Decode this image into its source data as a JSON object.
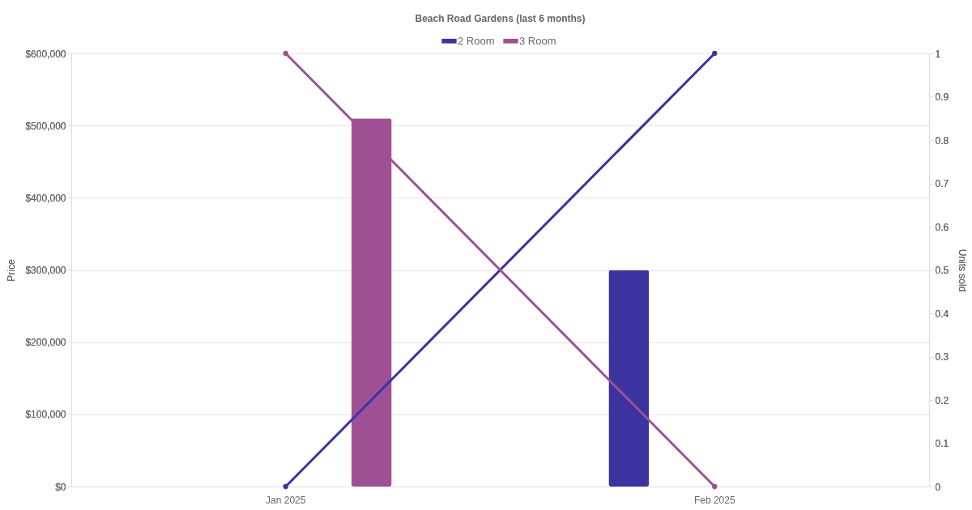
{
  "chart_data": {
    "type": "bar",
    "title": "Beach Road Gardens (last 6 months)",
    "ylabel": "Price",
    "y2label": "Units sold",
    "categories": [
      "Jan 2025",
      "Feb 2025"
    ],
    "series": [
      {
        "name": "2 Room",
        "color": "#3a33a0",
        "values": [
          null,
          300000
        ]
      },
      {
        "name": "3 Room",
        "color": "#9f5094",
        "values": [
          510000,
          null
        ]
      },
      {
        "type": "line",
        "axis": "y2",
        "color": "#3a33a0",
        "marker": "circle",
        "values": [
          0,
          1
        ]
      },
      {
        "type": "line",
        "axis": "y2",
        "color": "#9f5094",
        "marker": "circle",
        "values": [
          1,
          0
        ]
      }
    ],
    "ylim": [
      0,
      600000
    ],
    "yticks": [
      {
        "value": 0,
        "label": "$0"
      },
      {
        "value": 100000,
        "label": "$100,000"
      },
      {
        "value": 200000,
        "label": "$200,000"
      },
      {
        "value": 300000,
        "label": "$300,000"
      },
      {
        "value": 400000,
        "label": "$400,000"
      },
      {
        "value": 500000,
        "label": "$500,000"
      },
      {
        "value": 600000,
        "label": "$600,000"
      }
    ],
    "y2lim": [
      0,
      1
    ],
    "y2ticks": [
      0,
      0.1,
      0.2,
      0.3,
      0.4,
      0.5,
      0.6,
      0.7,
      0.8,
      0.9,
      1
    ],
    "grid": "y",
    "legend": "top"
  }
}
